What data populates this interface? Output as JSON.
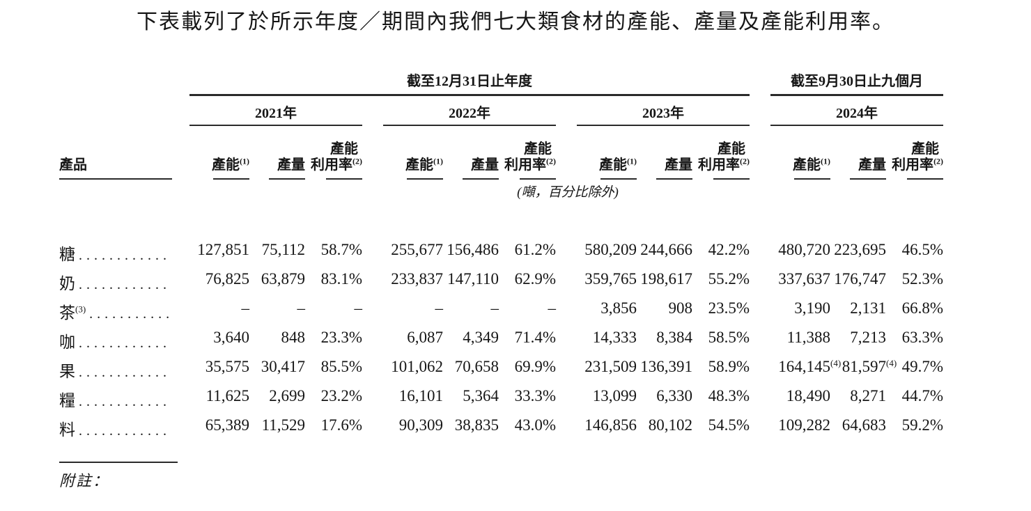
{
  "title": "下表載列了於所示年度／期間內我們七大類食材的產能、產量及產能利用率。",
  "table": {
    "spanners": {
      "year_ended": "截至12月31日止年度",
      "nine_months": "截至9月30日止九個月"
    },
    "years": [
      "2021年",
      "2022年",
      "2023年",
      "2024年"
    ],
    "product_header": "產品",
    "col_headers": {
      "capacity": "產能",
      "capacity_sup": "(1)",
      "output": "產量",
      "util_top": "產能",
      "util": "利用率",
      "util_sup": "(2)"
    },
    "unit_note": "(噸，百分比除外)",
    "rows": [
      {
        "product": "糖",
        "leader": "............",
        "values": [
          "127,851",
          "75,112",
          "58.7%",
          "255,677",
          "156,486",
          "61.2%",
          "580,209",
          "244,666",
          "42.2%",
          "480,720",
          "223,695",
          "46.5%"
        ]
      },
      {
        "product": "奶",
        "leader": "............",
        "values": [
          "76,825",
          "63,879",
          "83.1%",
          "233,837",
          "147,110",
          "62.9%",
          "359,765",
          "198,617",
          "55.2%",
          "337,637",
          "176,747",
          "52.3%"
        ]
      },
      {
        "product": "茶",
        "product_sup": "(3)",
        "leader": "...........",
        "values": [
          "–",
          "–",
          "–",
          "–",
          "–",
          "–",
          "3,856",
          "908",
          "23.5%",
          "3,190",
          "2,131",
          "66.8%"
        ]
      },
      {
        "product": "咖",
        "leader": "............",
        "values": [
          "3,640",
          "848",
          "23.3%",
          "6,087",
          "4,349",
          "71.4%",
          "14,333",
          "8,384",
          "58.5%",
          "11,388",
          "7,213",
          "63.3%"
        ]
      },
      {
        "product": "果",
        "leader": "............",
        "values": [
          "35,575",
          "30,417",
          "85.5%",
          "101,062",
          "70,658",
          "69.9%",
          "231,509",
          "136,391",
          "58.9%",
          "164,145",
          "81,597",
          "49.7%"
        ],
        "sups": {
          "9": "(4)",
          "10": "(4)"
        }
      },
      {
        "product": "糧",
        "leader": "............",
        "values": [
          "11,625",
          "2,699",
          "23.2%",
          "16,101",
          "5,364",
          "33.3%",
          "13,099",
          "6,330",
          "48.3%",
          "18,490",
          "8,271",
          "44.7%"
        ]
      },
      {
        "product": "料",
        "leader": "............",
        "values": [
          "65,389",
          "11,529",
          "17.6%",
          "90,309",
          "38,835",
          "43.0%",
          "146,856",
          "80,102",
          "54.5%",
          "109,282",
          "64,683",
          "59.2%"
        ]
      }
    ]
  },
  "footer": {
    "notes_label": "附註："
  }
}
